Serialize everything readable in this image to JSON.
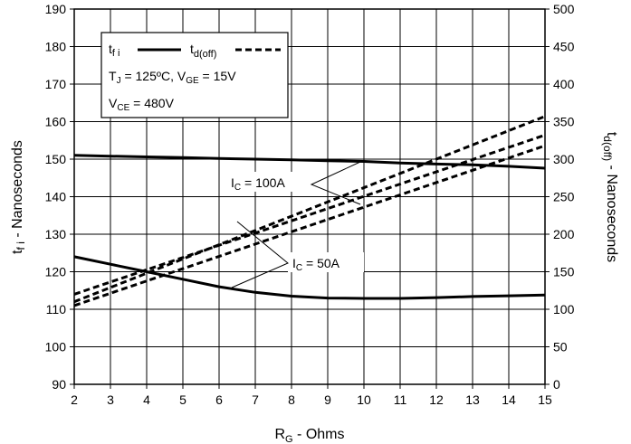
{
  "chart_data": {
    "type": "line",
    "x_axis": {
      "label_main": "R",
      "label_sub": "G",
      "label_rest": " - Ohms",
      "range": [
        2,
        15
      ],
      "ticks": [
        2,
        3,
        4,
        5,
        6,
        7,
        8,
        9,
        10,
        11,
        12,
        13,
        14,
        15
      ]
    },
    "y_left": {
      "label_main": "t",
      "label_sub": "f i",
      "label_rest": " - Nanoseconds",
      "range": [
        90,
        190
      ],
      "ticks": [
        90,
        100,
        110,
        120,
        130,
        140,
        150,
        160,
        170,
        180,
        190
      ]
    },
    "y_right": {
      "label_main": "t",
      "label_sub": "d(off)",
      "label_rest": " - Nanoseconds",
      "range": [
        0,
        500
      ],
      "ticks": [
        0,
        50,
        100,
        150,
        200,
        250,
        300,
        350,
        400,
        450,
        500
      ]
    },
    "grid": true,
    "legend": {
      "position": "top-left",
      "solid_main": "t",
      "solid_sub": "f i",
      "dashed_main": "t",
      "dashed_sub": "d(off)",
      "cond1_a": "T",
      "cond1_a_sub": "J",
      "cond1_b": " = 125ºC,  V",
      "cond1_b_sub": "GE",
      "cond1_c": " = 15V",
      "cond2_a": "V",
      "cond2_a_sub": "CE",
      "cond2_b": " = 480V"
    },
    "annotations": [
      {
        "main": "I",
        "sub": "C",
        "rest": " = 100A"
      },
      {
        "main": "I",
        "sub": "C",
        "rest": " = 50A"
      }
    ],
    "series": [
      {
        "style": "solid",
        "axis": "left",
        "condition": "IC = 100A",
        "x": [
          2,
          3,
          4,
          5,
          6,
          7,
          8,
          9,
          10,
          11,
          12,
          13,
          14,
          15
        ],
        "y": [
          151,
          150.8,
          150.6,
          150.4,
          150.2,
          150,
          149.8,
          149.6,
          149.4,
          149,
          148.7,
          148.5,
          148.1,
          147.6
        ]
      },
      {
        "style": "solid",
        "axis": "left",
        "condition": "IC = 50A",
        "x": [
          2,
          3,
          4,
          5,
          6,
          7,
          8,
          9,
          10,
          11,
          12,
          13,
          14,
          15
        ],
        "y": [
          124,
          122,
          120,
          118,
          116,
          114.5,
          113.5,
          113,
          112.9,
          112.9,
          113.1,
          113.4,
          113.6,
          113.8
        ]
      },
      {
        "style": "dashed",
        "axis": "right",
        "condition": "IC = 50A",
        "x": [
          2,
          15
        ],
        "y": [
          110,
          357
        ]
      },
      {
        "style": "dashed",
        "axis": "right",
        "condition": "IC = 50A",
        "x": [
          2,
          15
        ],
        "y": [
          120,
          332
        ]
      },
      {
        "style": "dashed",
        "axis": "right",
        "condition": "IC = 100A",
        "x": [
          2,
          15
        ],
        "y": [
          105,
          318
        ]
      }
    ]
  }
}
